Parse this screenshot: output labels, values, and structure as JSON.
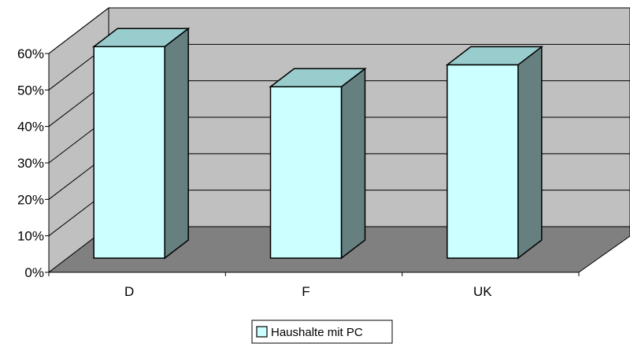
{
  "chart_data": {
    "type": "bar",
    "categories": [
      "D",
      "F",
      "UK"
    ],
    "series": [
      {
        "name": "Haushalte mit PC",
        "values": [
          58,
          47,
          53
        ]
      }
    ],
    "ylim": [
      0,
      60
    ],
    "yticks": [
      "0%",
      "10%",
      "20%",
      "30%",
      "40%",
      "50%",
      "60%"
    ],
    "grid": true,
    "legend": "bottom-center",
    "style": "3d-column",
    "colors": {
      "bar_front": "#ccffff",
      "bar_top": "#99cccc",
      "bar_side": "#668080",
      "wall": "#c0c0c0",
      "floor": "#808080",
      "outline": "#000000"
    }
  }
}
